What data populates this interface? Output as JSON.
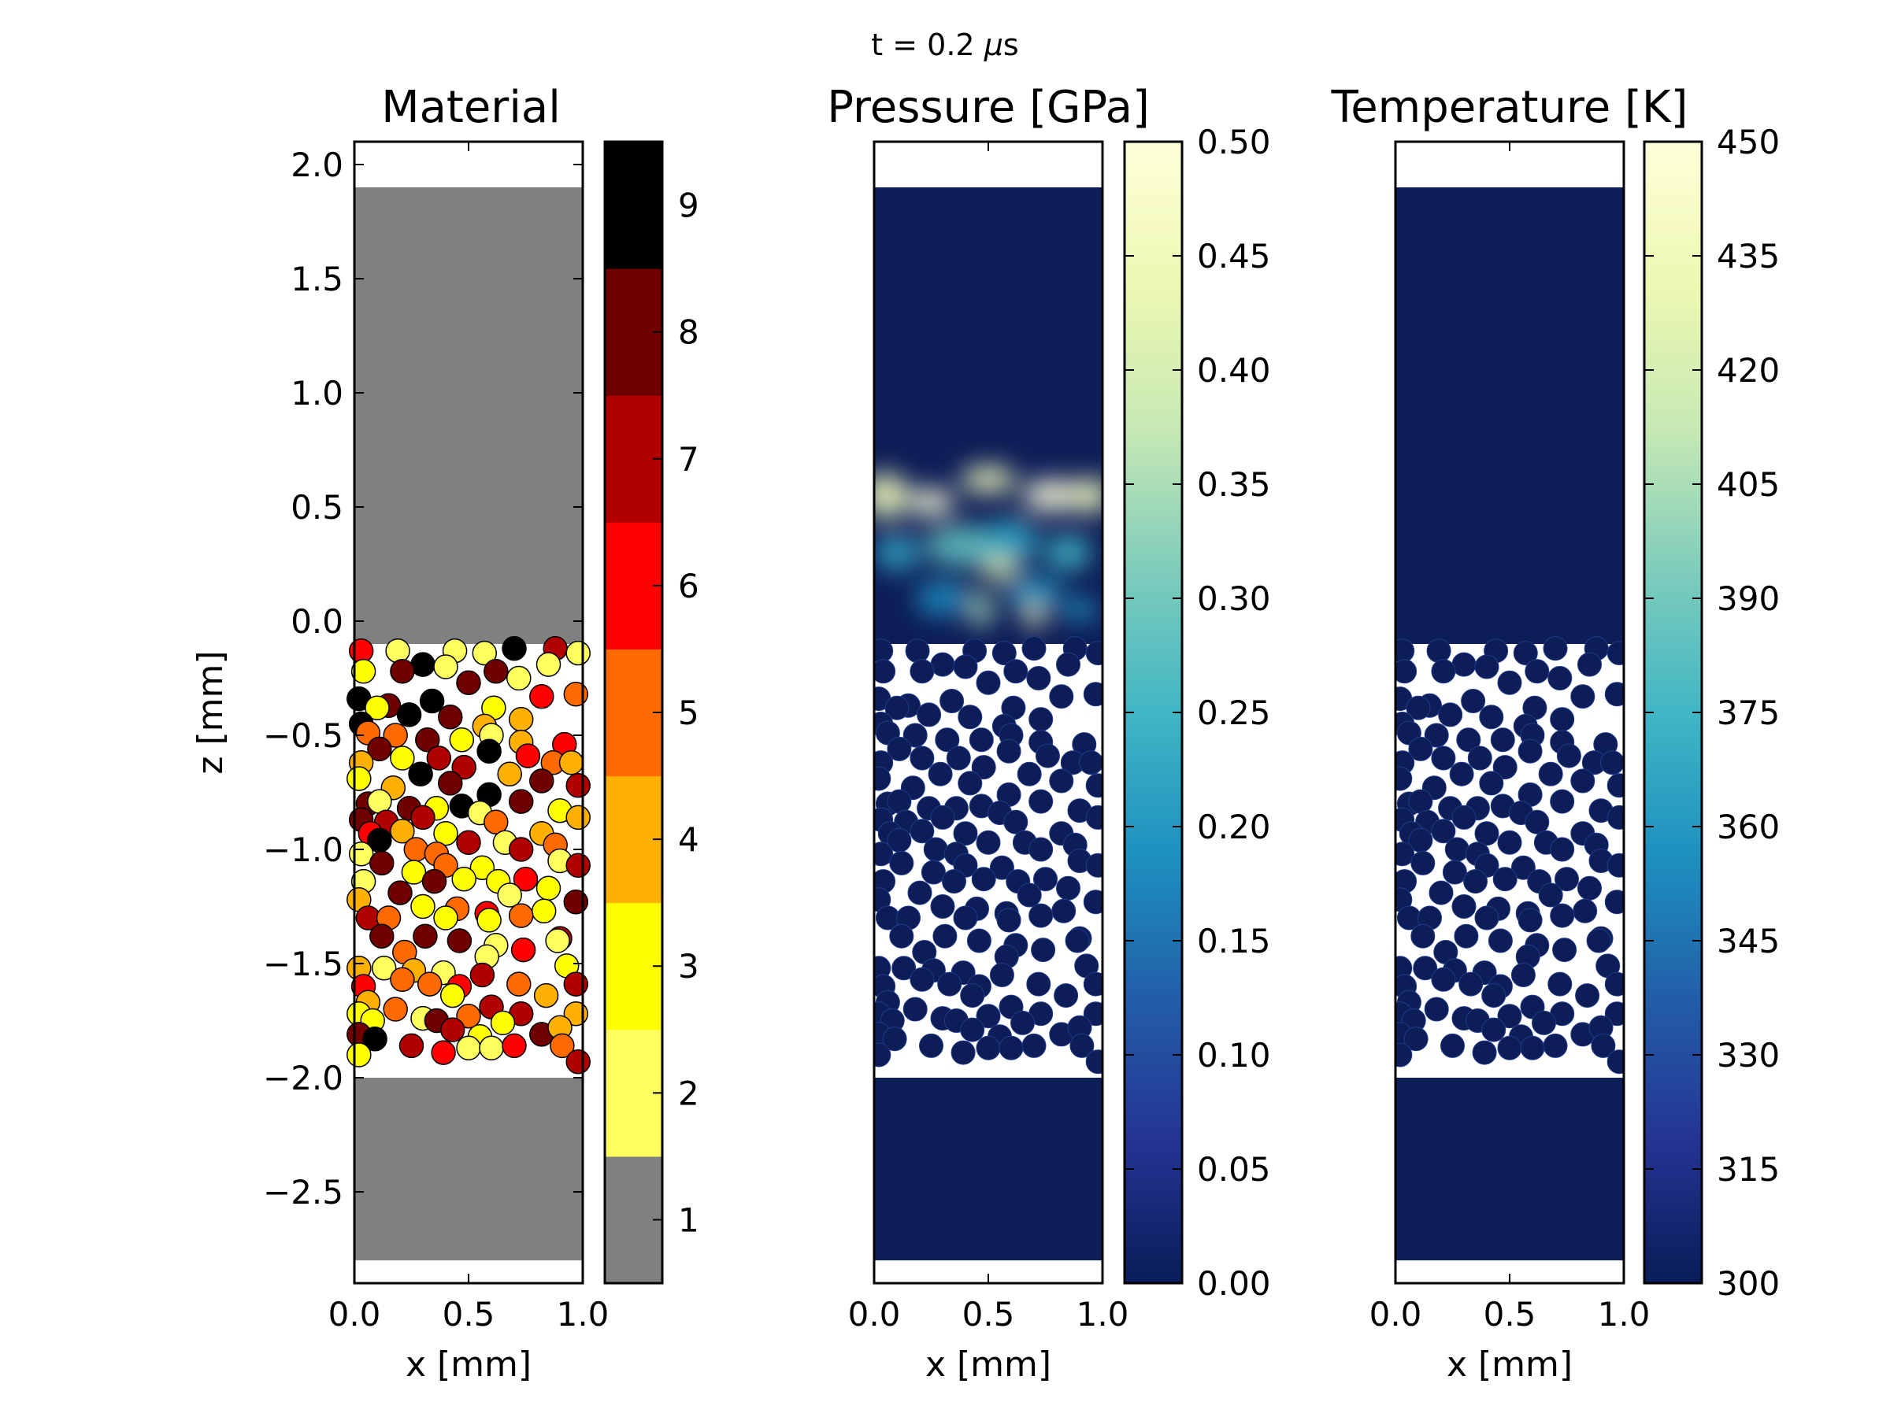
{
  "figure": {
    "suptitle_prefix": "t =  0.2 ",
    "suptitle_unit_mu": "μ",
    "suptitle_unit_s": "s"
  },
  "chart_data": [
    {
      "type": "heatmap",
      "title": "Material",
      "xlabel": "x [mm]",
      "ylabel": "z [mm]",
      "xlim": [
        0.0,
        1.0
      ],
      "ylim": [
        -2.9,
        2.1
      ],
      "xticks": [
        "0.0",
        "0.5",
        "1.0"
      ],
      "yticks": [
        {
          "v": 2.0,
          "label": "2.0"
        },
        {
          "v": 1.5,
          "label": "1.5"
        },
        {
          "v": 1.0,
          "label": "1.0"
        },
        {
          "v": 0.5,
          "label": "0.5"
        },
        {
          "v": 0.0,
          "label": "0.0"
        },
        {
          "v": -0.5,
          "label": "−0.5"
        },
        {
          "v": -1.0,
          "label": "−1.0"
        },
        {
          "v": -1.5,
          "label": "−1.5"
        },
        {
          "v": -2.0,
          "label": "−2.0"
        },
        {
          "v": -2.5,
          "label": "−2.5"
        }
      ],
      "upper_block_z": [
        -0.1,
        1.9
      ],
      "lower_block_z": [
        -2.8,
        -2.0
      ],
      "block_color": "#808080",
      "colorbar": {
        "kind": "discrete",
        "levels": [
          {
            "value": 1,
            "label": "1",
            "color": "#808080"
          },
          {
            "value": 2,
            "label": "2",
            "color": "#ffff60"
          },
          {
            "value": 3,
            "label": "3",
            "color": "#ffff00"
          },
          {
            "value": 4,
            "label": "4",
            "color": "#ffb000"
          },
          {
            "value": 5,
            "label": "5",
            "color": "#ff6a00"
          },
          {
            "value": 6,
            "label": "6",
            "color": "#ff0000"
          },
          {
            "value": 7,
            "label": "7",
            "color": "#b00000"
          },
          {
            "value": 8,
            "label": "8",
            "color": "#700000"
          },
          {
            "value": 9,
            "label": "9",
            "color": "#000000"
          }
        ]
      }
    },
    {
      "type": "heatmap",
      "title": "Pressure [GPa]",
      "xlabel": "x [mm]",
      "xlim": [
        0.0,
        1.0
      ],
      "ylim": [
        -2.9,
        2.1
      ],
      "xticks": [
        "0.0",
        "0.5",
        "1.0"
      ],
      "base_color": "#0d1d57",
      "colorbar": {
        "kind": "continuous",
        "colormap": "YlGnBu",
        "range": [
          0.0,
          0.5
        ],
        "ticks": [
          "0.00",
          "0.05",
          "0.10",
          "0.15",
          "0.20",
          "0.25",
          "0.30",
          "0.35",
          "0.40",
          "0.45",
          "0.50"
        ]
      }
    },
    {
      "type": "heatmap",
      "title": "Temperature [K]",
      "xlabel": "x [mm]",
      "xlim": [
        0.0,
        1.0
      ],
      "ylim": [
        -2.9,
        2.1
      ],
      "xticks": [
        "0.0",
        "0.5",
        "1.0"
      ],
      "base_color": "#0d1d57",
      "colorbar": {
        "kind": "continuous",
        "colormap": "YlGnBu",
        "range": [
          300,
          450
        ],
        "ticks": [
          "300",
          "315",
          "330",
          "345",
          "360",
          "375",
          "390",
          "405",
          "420",
          "435",
          "450"
        ]
      }
    }
  ],
  "particles": [
    {
      "x": 0.03,
      "z": -0.13,
      "m": 6
    },
    {
      "x": 0.19,
      "z": -0.13,
      "m": 2
    },
    {
      "x": 0.44,
      "z": -0.13,
      "m": 2
    },
    {
      "x": 0.57,
      "z": -0.14,
      "m": 2
    },
    {
      "x": 0.7,
      "z": -0.12,
      "m": 9
    },
    {
      "x": 0.88,
      "z": -0.12,
      "m": 7
    },
    {
      "x": 0.98,
      "z": -0.14,
      "m": 2
    },
    {
      "x": 0.04,
      "z": -0.22,
      "m": 3
    },
    {
      "x": 0.3,
      "z": -0.19,
      "m": 9
    },
    {
      "x": 0.4,
      "z": -0.2,
      "m": 2
    },
    {
      "x": 0.62,
      "z": -0.22,
      "m": 8
    },
    {
      "x": 0.85,
      "z": -0.19,
      "m": 2
    },
    {
      "x": 0.21,
      "z": -0.22,
      "m": 8
    },
    {
      "x": 0.5,
      "z": -0.27,
      "m": 8
    },
    {
      "x": 0.72,
      "z": -0.25,
      "m": 2
    },
    {
      "x": 0.97,
      "z": -0.32,
      "m": 5
    },
    {
      "x": 0.02,
      "z": -0.34,
      "m": 9
    },
    {
      "x": 0.15,
      "z": -0.37,
      "m": 8
    },
    {
      "x": 0.34,
      "z": -0.35,
      "m": 9
    },
    {
      "x": 0.61,
      "z": -0.38,
      "m": 3
    },
    {
      "x": 0.82,
      "z": -0.33,
      "m": 6
    },
    {
      "x": 0.1,
      "z": -0.38,
      "m": 3
    },
    {
      "x": 0.24,
      "z": -0.41,
      "m": 9
    },
    {
      "x": 0.42,
      "z": -0.42,
      "m": 8
    },
    {
      "x": 0.57,
      "z": -0.46,
      "m": 4
    },
    {
      "x": 0.73,
      "z": -0.43,
      "m": 4
    },
    {
      "x": 0.03,
      "z": -0.45,
      "m": 9
    },
    {
      "x": 0.18,
      "z": -0.5,
      "m": 5
    },
    {
      "x": 0.47,
      "z": -0.52,
      "m": 3
    },
    {
      "x": 0.73,
      "z": -0.53,
      "m": 4
    },
    {
      "x": 0.06,
      "z": -0.49,
      "m": 5
    },
    {
      "x": 0.32,
      "z": -0.52,
      "m": 8
    },
    {
      "x": 0.6,
      "z": -0.5,
      "m": 2
    },
    {
      "x": 0.92,
      "z": -0.54,
      "m": 6
    },
    {
      "x": 0.11,
      "z": -0.56,
      "m": 8
    },
    {
      "x": 0.37,
      "z": -0.6,
      "m": 7
    },
    {
      "x": 0.21,
      "z": -0.6,
      "m": 3
    },
    {
      "x": 0.59,
      "z": -0.57,
      "m": 9
    },
    {
      "x": 0.76,
      "z": -0.59,
      "m": 6
    },
    {
      "x": 0.03,
      "z": -0.62,
      "m": 4
    },
    {
      "x": 0.29,
      "z": -0.67,
      "m": 9
    },
    {
      "x": 0.48,
      "z": -0.64,
      "m": 7
    },
    {
      "x": 0.87,
      "z": -0.62,
      "m": 5
    },
    {
      "x": 0.02,
      "z": -0.69,
      "m": 3
    },
    {
      "x": 0.17,
      "z": -0.73,
      "m": 4
    },
    {
      "x": 0.42,
      "z": -0.71,
      "m": 8
    },
    {
      "x": 0.68,
      "z": -0.67,
      "m": 4
    },
    {
      "x": 0.95,
      "z": -0.62,
      "m": 4
    },
    {
      "x": 0.06,
      "z": -0.8,
      "m": 8
    },
    {
      "x": 0.24,
      "z": -0.82,
      "m": 8
    },
    {
      "x": 0.59,
      "z": -0.76,
      "m": 9
    },
    {
      "x": 0.82,
      "z": -0.7,
      "m": 8
    },
    {
      "x": 0.11,
      "z": -0.79,
      "m": 2
    },
    {
      "x": 0.36,
      "z": -0.82,
      "m": 3
    },
    {
      "x": 0.47,
      "z": -0.81,
      "m": 9
    },
    {
      "x": 0.73,
      "z": -0.79,
      "m": 8
    },
    {
      "x": 0.98,
      "z": -0.72,
      "m": 7
    },
    {
      "x": 0.03,
      "z": -0.87,
      "m": 8
    },
    {
      "x": 0.14,
      "z": -0.88,
      "m": 7
    },
    {
      "x": 0.3,
      "z": -0.86,
      "m": 7
    },
    {
      "x": 0.55,
      "z": -0.84,
      "m": 2
    },
    {
      "x": 0.62,
      "z": -0.88,
      "m": 5
    },
    {
      "x": 0.9,
      "z": -0.83,
      "m": 3
    },
    {
      "x": 0.07,
      "z": -0.93,
      "m": 6
    },
    {
      "x": 0.21,
      "z": -0.92,
      "m": 4
    },
    {
      "x": 0.4,
      "z": -0.93,
      "m": 3
    },
    {
      "x": 0.82,
      "z": -0.93,
      "m": 4
    },
    {
      "x": 0.98,
      "z": -0.86,
      "m": 4
    },
    {
      "x": 0.11,
      "z": -0.96,
      "m": 9
    },
    {
      "x": 0.5,
      "z": -0.97,
      "m": 7
    },
    {
      "x": 0.66,
      "z": -0.97,
      "m": 2
    },
    {
      "x": 0.88,
      "z": -0.98,
      "m": 5
    },
    {
      "x": 0.27,
      "z": -1.0,
      "m": 5
    },
    {
      "x": 0.36,
      "z": -1.02,
      "m": 5
    },
    {
      "x": 0.03,
      "z": -1.02,
      "m": 2
    },
    {
      "x": 0.73,
      "z": -1.0,
      "m": 7
    },
    {
      "x": 0.12,
      "z": -1.06,
      "m": 8
    },
    {
      "x": 0.4,
      "z": -1.07,
      "m": 5
    },
    {
      "x": 0.26,
      "z": -1.1,
      "m": 3
    },
    {
      "x": 0.56,
      "z": -1.08,
      "m": 3
    },
    {
      "x": 0.9,
      "z": -1.05,
      "m": 2
    },
    {
      "x": 0.98,
      "z": -1.07,
      "m": 7
    },
    {
      "x": 0.04,
      "z": -1.14,
      "m": 2
    },
    {
      "x": 0.35,
      "z": -1.14,
      "m": 8
    },
    {
      "x": 0.48,
      "z": -1.13,
      "m": 3
    },
    {
      "x": 0.63,
      "z": -1.14,
      "m": 3
    },
    {
      "x": 0.75,
      "z": -1.13,
      "m": 6
    },
    {
      "x": 0.02,
      "z": -1.22,
      "m": 4
    },
    {
      "x": 0.2,
      "z": -1.19,
      "m": 8
    },
    {
      "x": 0.68,
      "z": -1.2,
      "m": 2
    },
    {
      "x": 0.85,
      "z": -1.17,
      "m": 3
    },
    {
      "x": 0.3,
      "z": -1.25,
      "m": 3
    },
    {
      "x": 0.45,
      "z": -1.26,
      "m": 5
    },
    {
      "x": 0.58,
      "z": -1.28,
      "m": 6
    },
    {
      "x": 0.83,
      "z": -1.27,
      "m": 3
    },
    {
      "x": 0.97,
      "z": -1.23,
      "m": 8
    },
    {
      "x": 0.06,
      "z": -1.3,
      "m": 7
    },
    {
      "x": 0.15,
      "z": -1.3,
      "m": 5
    },
    {
      "x": 0.4,
      "z": -1.3,
      "m": 3
    },
    {
      "x": 0.59,
      "z": -1.31,
      "m": 3
    },
    {
      "x": 0.73,
      "z": -1.29,
      "m": 5
    },
    {
      "x": 0.12,
      "z": -1.38,
      "m": 8
    },
    {
      "x": 0.31,
      "z": -1.38,
      "m": 8
    },
    {
      "x": 0.46,
      "z": -1.4,
      "m": 8
    },
    {
      "x": 0.62,
      "z": -1.42,
      "m": 2
    },
    {
      "x": 0.9,
      "z": -1.39,
      "m": 7
    },
    {
      "x": 0.22,
      "z": -1.45,
      "m": 5
    },
    {
      "x": 0.58,
      "z": -1.47,
      "m": 2
    },
    {
      "x": 0.74,
      "z": -1.44,
      "m": 6
    },
    {
      "x": 0.89,
      "z": -1.4,
      "m": 2
    },
    {
      "x": 0.02,
      "z": -1.52,
      "m": 4
    },
    {
      "x": 0.13,
      "z": -1.52,
      "m": 2
    },
    {
      "x": 0.26,
      "z": -1.53,
      "m": 4
    },
    {
      "x": 0.39,
      "z": -1.54,
      "m": 2
    },
    {
      "x": 0.56,
      "z": -1.55,
      "m": 7
    },
    {
      "x": 0.93,
      "z": -1.51,
      "m": 3
    },
    {
      "x": 0.04,
      "z": -1.6,
      "m": 6
    },
    {
      "x": 0.21,
      "z": -1.57,
      "m": 5
    },
    {
      "x": 0.33,
      "z": -1.59,
      "m": 5
    },
    {
      "x": 0.46,
      "z": -1.6,
      "m": 6
    },
    {
      "x": 0.72,
      "z": -1.59,
      "m": 5
    },
    {
      "x": 0.97,
      "z": -1.59,
      "m": 7
    },
    {
      "x": 0.06,
      "z": -1.67,
      "m": 4
    },
    {
      "x": 0.18,
      "z": -1.7,
      "m": 5
    },
    {
      "x": 0.43,
      "z": -1.64,
      "m": 3
    },
    {
      "x": 0.84,
      "z": -1.64,
      "m": 4
    },
    {
      "x": 0.02,
      "z": -1.72,
      "m": 3
    },
    {
      "x": 0.3,
      "z": -1.74,
      "m": 2
    },
    {
      "x": 0.5,
      "z": -1.73,
      "m": 5
    },
    {
      "x": 0.6,
      "z": -1.69,
      "m": 7
    },
    {
      "x": 0.73,
      "z": -1.72,
      "m": 7
    },
    {
      "x": 0.97,
      "z": -1.72,
      "m": 4
    },
    {
      "x": 0.08,
      "z": -1.75,
      "m": 3
    },
    {
      "x": 0.36,
      "z": -1.75,
      "m": 8
    },
    {
      "x": 0.65,
      "z": -1.76,
      "m": 3
    },
    {
      "x": 0.02,
      "z": -1.81,
      "m": 8
    },
    {
      "x": 0.43,
      "z": -1.79,
      "m": 7
    },
    {
      "x": 0.55,
      "z": -1.82,
      "m": 3
    },
    {
      "x": 0.82,
      "z": -1.81,
      "m": 8
    },
    {
      "x": 0.9,
      "z": -1.78,
      "m": 4
    },
    {
      "x": 0.09,
      "z": -1.83,
      "m": 9
    },
    {
      "x": 0.25,
      "z": -1.86,
      "m": 7
    },
    {
      "x": 0.39,
      "z": -1.89,
      "m": 6
    },
    {
      "x": 0.5,
      "z": -1.87,
      "m": 2
    },
    {
      "x": 0.6,
      "z": -1.87,
      "m": 2
    },
    {
      "x": 0.7,
      "z": -1.86,
      "m": 6
    },
    {
      "x": 0.91,
      "z": -1.86,
      "m": 5
    },
    {
      "x": 0.02,
      "z": -1.9,
      "m": 3
    },
    {
      "x": 0.98,
      "z": -1.93,
      "m": 7
    }
  ],
  "pressure_wave": [
    {
      "x": 0.05,
      "z": 0.55,
      "rx": 0.1,
      "rz": 0.1,
      "v": 0.45
    },
    {
      "x": 0.25,
      "z": 0.52,
      "rx": 0.1,
      "rz": 0.06,
      "v": 0.5
    },
    {
      "x": 0.5,
      "z": 0.62,
      "rx": 0.12,
      "rz": 0.06,
      "v": 0.45
    },
    {
      "x": 0.78,
      "z": 0.55,
      "rx": 0.13,
      "rz": 0.07,
      "v": 0.5
    },
    {
      "x": 0.95,
      "z": 0.55,
      "rx": 0.08,
      "rz": 0.08,
      "v": 0.45
    },
    {
      "x": 0.4,
      "z": 0.33,
      "rx": 0.18,
      "rz": 0.09,
      "v": 0.28
    },
    {
      "x": 0.6,
      "z": 0.35,
      "rx": 0.12,
      "rz": 0.1,
      "v": 0.22
    },
    {
      "x": 0.55,
      "z": 0.23,
      "rx": 0.08,
      "rz": 0.05,
      "v": 0.42
    },
    {
      "x": 0.85,
      "z": 0.3,
      "rx": 0.1,
      "rz": 0.08,
      "v": 0.25
    },
    {
      "x": 0.1,
      "z": 0.3,
      "rx": 0.1,
      "rz": 0.08,
      "v": 0.22
    },
    {
      "x": 0.3,
      "z": 0.1,
      "rx": 0.12,
      "rz": 0.08,
      "v": 0.18
    },
    {
      "x": 0.7,
      "z": 0.12,
      "rx": 0.12,
      "rz": 0.08,
      "v": 0.2
    },
    {
      "x": 0.7,
      "z": 0.02,
      "rx": 0.04,
      "rz": 0.06,
      "v": 0.45
    },
    {
      "x": 0.47,
      "z": 0.05,
      "rx": 0.05,
      "rz": 0.08,
      "v": 0.35
    },
    {
      "x": 0.9,
      "z": 0.05,
      "rx": 0.08,
      "rz": 0.05,
      "v": 0.2
    }
  ]
}
